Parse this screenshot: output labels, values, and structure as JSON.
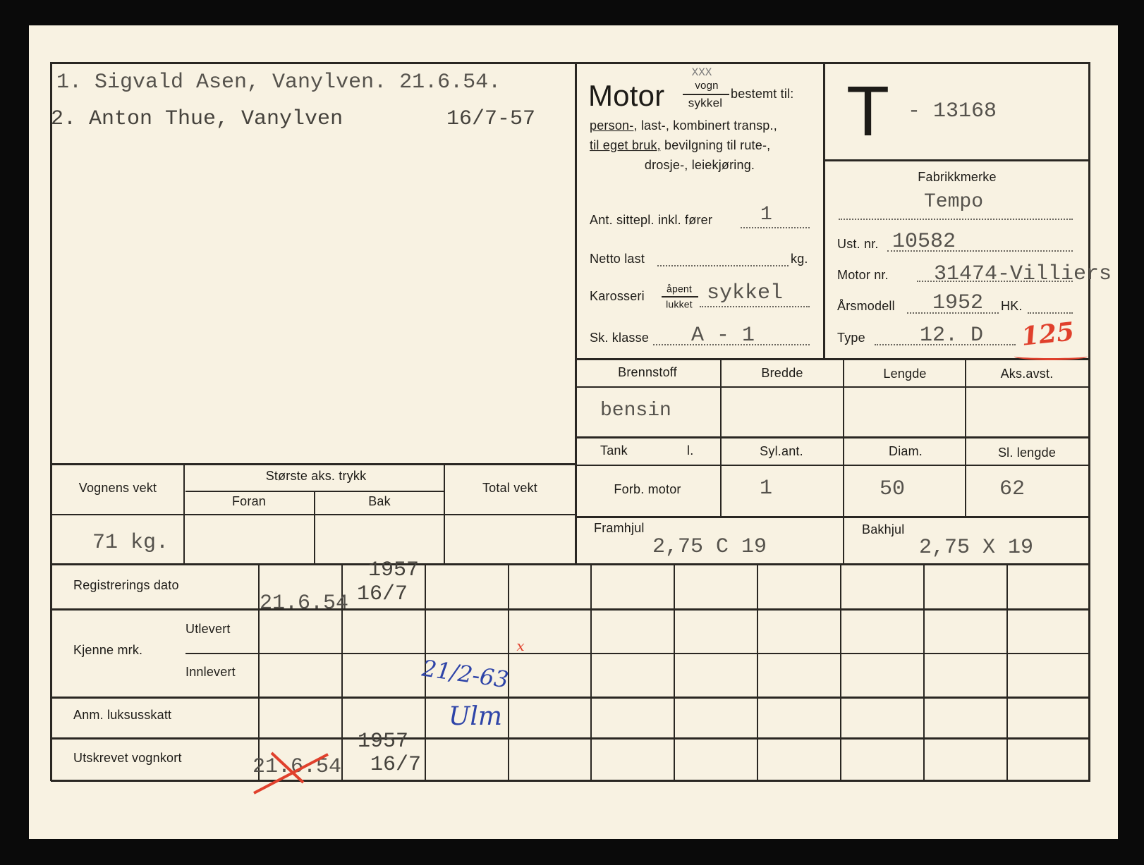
{
  "owners": {
    "line1": "1. Sigvald Asen, Vanylven. 21.6.54.",
    "line2_name": "2. Anton Thue, Vanylven",
    "line2_date": "16/7-57"
  },
  "motor": {
    "title": "Motor",
    "vogn": "vogn",
    "vogn_struck": "XXX",
    "sykkel": "sykkel",
    "bestemt": "bestemt til:",
    "purpose_1a": "person-",
    "purpose_1b": ", last-, kombinert transp.,",
    "purpose_2a": "til eget bruk,",
    "purpose_2b": " bevilgning til rute-,",
    "purpose_3": "drosje-, leiekjøring.",
    "seats_label": "Ant. sittepl. inkl. fører",
    "seats_value": "1",
    "netto_label": "Netto last",
    "netto_unit": "kg.",
    "karosseri_label": "Karosseri",
    "apent": "åpent",
    "lukket": "lukket",
    "karosseri_value": "sykkel",
    "klasse_label": "Sk. klasse",
    "klasse_value": "A - 1"
  },
  "registration": {
    "letter": "T",
    "number": "- 13168"
  },
  "vehicle": {
    "fabrikk_label": "Fabrikkmerke",
    "fabrikk_value": "Tempo",
    "ust_label": "Ust. nr.",
    "ust_value": "10582",
    "motor_nr_label": "Motor nr.",
    "motor_nr_value": "31474-Villiers",
    "arsmodell_label": "Årsmodell",
    "arsmodell_value": "1952",
    "hk_label": "HK.",
    "type_label": "Type",
    "type_value": "12. D",
    "red_annotation": "125"
  },
  "tech": {
    "headers": [
      "Brennstoff",
      "Bredde",
      "Lengde",
      "Aks.avst."
    ],
    "row1": [
      "bensin",
      "",
      "",
      ""
    ],
    "headers2": [
      "Tank",
      "l.",
      "Syl.ant.",
      "Diam.",
      "Sl. lengde"
    ],
    "row2": [
      "Forb. motor",
      "1",
      "50",
      "62"
    ],
    "framhjul_label": "Framhjul",
    "framhjul_value": "2,75 C 19",
    "bakhjul_label": "Bakhjul",
    "bakhjul_value": "2,75 X 19"
  },
  "weight": {
    "vognens_vekt": "Vognens vekt",
    "storste": "Største aks. trykk",
    "foran": "Foran",
    "bak": "Bak",
    "total": "Total vekt",
    "vognens_value": "71 kg."
  },
  "history": {
    "reg_dato": "Registrerings dato",
    "kjenne": "Kjenne mrk.",
    "utlevert": "Utlevert",
    "innlevert": "Innlevert",
    "anm": "Anm. luksusskatt",
    "utskrevet": "Utskrevet vognkort",
    "reg_date_1": "21.6.54",
    "reg_year_2": "1957",
    "reg_date_2": "16/7",
    "innlevert_hand": "21/2-63",
    "signature": "Ulm",
    "utskr_date_1": "21.6.54",
    "utskr_year_2": "1957",
    "utskr_date_2": "16/7"
  },
  "colors": {
    "paper": "#f8f2e2",
    "ink": "#2a2722",
    "typewriter": "#55524c",
    "red_pen": "#e0402c",
    "blue_pen": "#2e44a8"
  }
}
